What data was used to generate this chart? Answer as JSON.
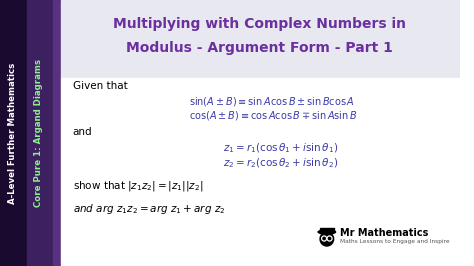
{
  "bg_color": "#ffffff",
  "title_color": "#6b2fa0",
  "title_line1": "Multiplying with Complex Numbers in",
  "title_line2": "Modulus - Argument Form - Part 1",
  "sidebar_text1": "A-Level Further Mathematics",
  "sidebar_text2": "Core Pure 1: Argand Diagrams",
  "body_text_color": "#000000",
  "math_color": "#3a3aaa",
  "given_that": "Given that",
  "and_text": "and",
  "logo_text": "Mr Mathematics",
  "logo_sub": "Maths Lessons to Engage and Inspire",
  "sidebar_outer": "#1a0a30",
  "sidebar_mid": "#3d2060",
  "sidebar_inner": "#5a3080",
  "sidebar_green": "#90EE90",
  "title_bg": "#e8e8f0",
  "body_bg": "#ffffff"
}
